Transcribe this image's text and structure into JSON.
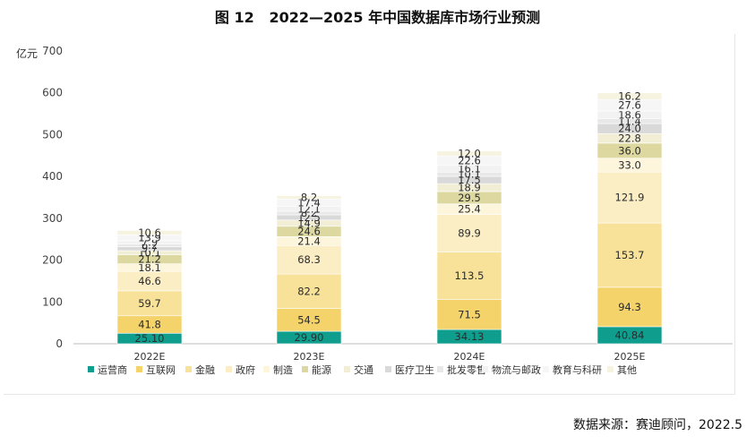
{
  "title": "图 12   2022—2025 年中国数据库市场行业预测",
  "source": "数据来源：赛迪顾问，2022.5",
  "colors": [
    "#0f9e8e",
    "#f5d36b",
    "#f8e29a",
    "#fbeec4",
    "#fdf5dc",
    "#dcd8a0",
    "#f2eed6",
    "#d9d9d9",
    "#e8e8e8",
    "#f2f2f2",
    "#f6f6f6",
    "#f7f3e1"
  ],
  "chart_data": {
    "type": "bar",
    "stacked": true,
    "title": "图 12   2022—2025 年中国数据库市场行业预测",
    "ylabel": "亿元",
    "ylim": [
      0,
      700
    ],
    "yticks": [
      0,
      100,
      200,
      300,
      400,
      500,
      600,
      700
    ],
    "categories": [
      "2022E",
      "2023E",
      "2024E",
      "2025E"
    ],
    "legend_position": "bottom",
    "series": [
      {
        "name": "运营商",
        "values": [
          "25.10",
          "29.90",
          "34.13",
          "40.84"
        ]
      },
      {
        "name": "互联网",
        "values": [
          "41.8",
          "54.5",
          "71.5",
          "94.3"
        ]
      },
      {
        "name": "金融",
        "values": [
          "59.7",
          "82.2",
          "113.5",
          "153.7"
        ]
      },
      {
        "name": "政府",
        "values": [
          "46.6",
          "68.3",
          "89.9",
          "121.9"
        ]
      },
      {
        "name": "制造",
        "values": [
          "18.1",
          "21.4",
          "25.4",
          "33.0"
        ]
      },
      {
        "name": "能源",
        "values": [
          "21.2",
          "24.6",
          "29.5",
          "36.0"
        ]
      },
      {
        "name": "交通",
        "values": [
          "10.1",
          "14.9",
          "18.9",
          "22.8"
        ]
      },
      {
        "name": "医疗卫生",
        "values": [
          "9.7",
          "12.5",
          "17.5",
          "24.0"
        ]
      },
      {
        "name": "批发零售",
        "values": [
          "6.2",
          "8.2",
          "10.1",
          "11.4"
        ]
      },
      {
        "name": "物流与邮政",
        "values": [
          "7.9",
          "12.1",
          "16.1",
          "18.6"
        ]
      },
      {
        "name": "教育与科研",
        "values": [
          "13.9",
          "17.4",
          "22.6",
          "27.6"
        ]
      },
      {
        "name": "其他",
        "values": [
          "10.6",
          "8.2",
          "12.0",
          "16.2"
        ]
      }
    ]
  }
}
